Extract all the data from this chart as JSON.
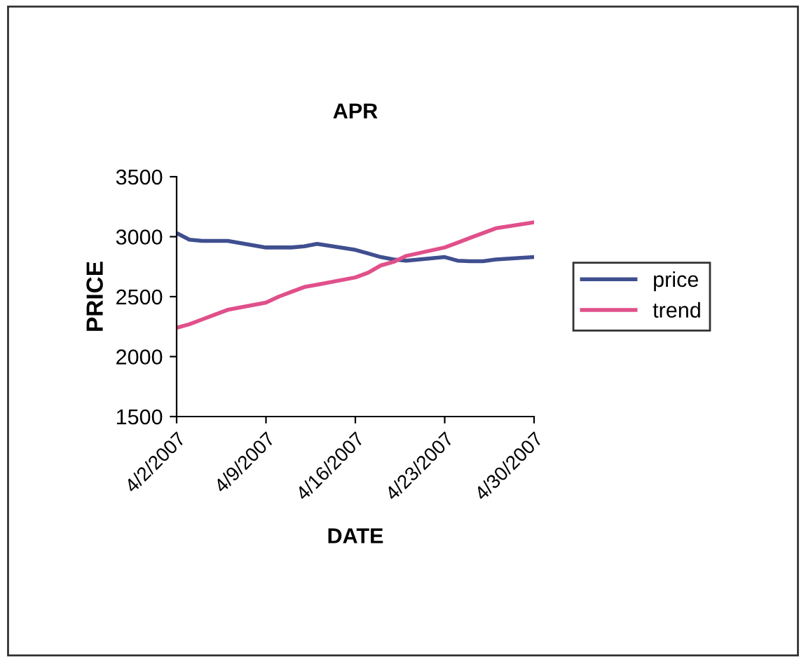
{
  "chart_data": {
    "type": "line",
    "title": "APR",
    "xlabel": "DATE",
    "ylabel": "PRICE",
    "x": [
      "2007-04-02",
      "2007-04-03",
      "2007-04-04",
      "2007-04-05",
      "2007-04-06",
      "2007-04-09",
      "2007-04-10",
      "2007-04-11",
      "2007-04-12",
      "2007-04-13",
      "2007-04-16",
      "2007-04-17",
      "2007-04-18",
      "2007-04-19",
      "2007-04-20",
      "2007-04-23",
      "2007-04-24",
      "2007-04-25",
      "2007-04-26",
      "2007-04-27",
      "2007-04-30"
    ],
    "series": [
      {
        "name": "price",
        "color": "#3f4f8f",
        "values": [
          3030,
          2975,
          2965,
          2965,
          2965,
          2910,
          2910,
          2910,
          2920,
          2940,
          2890,
          2860,
          2830,
          2810,
          2800,
          2830,
          2800,
          2795,
          2795,
          2810,
          2830
        ]
      },
      {
        "name": "trend",
        "color": "#e0508a",
        "values": [
          2240,
          2270,
          2310,
          2350,
          2390,
          2450,
          2500,
          2540,
          2580,
          2600,
          2660,
          2700,
          2760,
          2790,
          2840,
          2910,
          2950,
          2990,
          3030,
          3070,
          3120
        ]
      }
    ],
    "xlim": [
      "2007-04-02",
      "2007-04-30"
    ],
    "xticks": [
      {
        "value": "2007-04-02",
        "label": "4/2/2007"
      },
      {
        "value": "2007-04-09",
        "label": "4/9/2007"
      },
      {
        "value": "2007-04-16",
        "label": "4/16/2007"
      },
      {
        "value": "2007-04-23",
        "label": "4/23/2007"
      },
      {
        "value": "2007-04-30",
        "label": "4/30/2007"
      }
    ],
    "ylim": [
      1500,
      3500
    ],
    "yticks": [
      1500,
      2000,
      2500,
      3000,
      3500
    ],
    "grid": false,
    "legend": "right",
    "marker": "none",
    "line_style": "solid"
  }
}
